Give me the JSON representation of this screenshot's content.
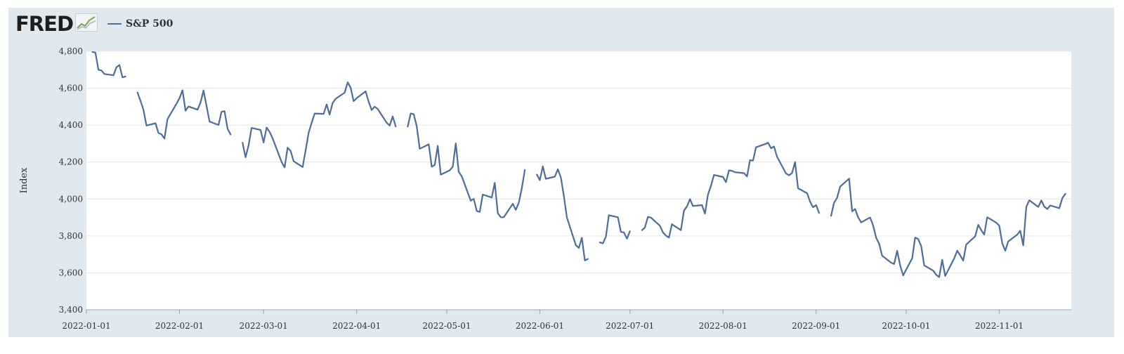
{
  "header": {
    "logo_text": "FRED",
    "legend_label": "S&P 500"
  },
  "colors": {
    "series": "#4d6d9a",
    "frame_background": "#e1e9f0",
    "plot_background": "#ffffff",
    "grid": "#e6e6e6"
  },
  "icons": {
    "logo_graph": "chart-line-icon"
  },
  "chart_data": {
    "type": "line",
    "title": "",
    "xlabel": "",
    "ylabel": "Index",
    "ylim": [
      3400,
      4800
    ],
    "xlim": [
      "2022-01-01",
      "2022-11-25"
    ],
    "y_ticks": [
      "3,400",
      "3,600",
      "3,800",
      "4,000",
      "4,200",
      "4,400",
      "4,600",
      "4,800"
    ],
    "x_ticks": [
      "2022-01-01",
      "2022-02-01",
      "2022-03-01",
      "2022-04-01",
      "2022-05-01",
      "2022-06-01",
      "2022-07-01",
      "2022-08-01",
      "2022-09-01",
      "2022-10-01",
      "2022-11-01"
    ],
    "grid": true,
    "legend_position": "top-left",
    "series": [
      {
        "name": "S&P 500",
        "x": [
          "2022-01-03",
          "2022-01-04",
          "2022-01-05",
          "2022-01-06",
          "2022-01-07",
          "2022-01-10",
          "2022-01-11",
          "2022-01-12",
          "2022-01-13",
          "2022-01-14",
          null,
          "2022-01-18",
          "2022-01-19",
          "2022-01-20",
          "2022-01-21",
          "2022-01-24",
          "2022-01-25",
          "2022-01-26",
          "2022-01-27",
          "2022-01-28",
          "2022-01-31",
          "2022-02-01",
          "2022-02-02",
          "2022-02-03",
          "2022-02-04",
          "2022-02-07",
          "2022-02-08",
          "2022-02-09",
          "2022-02-10",
          "2022-02-11",
          "2022-02-14",
          "2022-02-15",
          "2022-02-16",
          "2022-02-17",
          "2022-02-18",
          null,
          "2022-02-22",
          "2022-02-23",
          "2022-02-24",
          "2022-02-25",
          "2022-02-28",
          "2022-03-01",
          "2022-03-02",
          "2022-03-03",
          "2022-03-04",
          "2022-03-07",
          "2022-03-08",
          "2022-03-09",
          "2022-03-10",
          "2022-03-11",
          "2022-03-14",
          "2022-03-15",
          "2022-03-16",
          "2022-03-17",
          "2022-03-18",
          "2022-03-21",
          "2022-03-22",
          "2022-03-23",
          "2022-03-24",
          "2022-03-25",
          "2022-03-28",
          "2022-03-29",
          "2022-03-30",
          "2022-03-31",
          "2022-04-01",
          "2022-04-04",
          "2022-04-05",
          "2022-04-06",
          "2022-04-07",
          "2022-04-08",
          "2022-04-11",
          "2022-04-12",
          "2022-04-13",
          "2022-04-14",
          null,
          "2022-04-18",
          "2022-04-19",
          "2022-04-20",
          "2022-04-21",
          "2022-04-22",
          "2022-04-25",
          "2022-04-26",
          "2022-04-27",
          "2022-04-28",
          "2022-04-29",
          "2022-05-02",
          "2022-05-03",
          "2022-05-04",
          "2022-05-05",
          "2022-05-06",
          "2022-05-09",
          "2022-05-10",
          "2022-05-11",
          "2022-05-12",
          "2022-05-13",
          "2022-05-16",
          "2022-05-17",
          "2022-05-18",
          "2022-05-19",
          "2022-05-20",
          "2022-05-23",
          "2022-05-24",
          "2022-05-25",
          "2022-05-26",
          "2022-05-27",
          null,
          "2022-05-31",
          "2022-06-01",
          "2022-06-02",
          "2022-06-03",
          "2022-06-06",
          "2022-06-07",
          "2022-06-08",
          "2022-06-09",
          "2022-06-10",
          "2022-06-13",
          "2022-06-14",
          "2022-06-15",
          "2022-06-16",
          "2022-06-17",
          null,
          "2022-06-21",
          "2022-06-22",
          "2022-06-23",
          "2022-06-24",
          "2022-06-27",
          "2022-06-28",
          "2022-06-29",
          "2022-06-30",
          "2022-07-01",
          null,
          "2022-07-05",
          "2022-07-06",
          "2022-07-07",
          "2022-07-08",
          "2022-07-11",
          "2022-07-12",
          "2022-07-13",
          "2022-07-14",
          "2022-07-15",
          "2022-07-18",
          "2022-07-19",
          "2022-07-20",
          "2022-07-21",
          "2022-07-22",
          "2022-07-25",
          "2022-07-26",
          "2022-07-27",
          "2022-07-28",
          "2022-07-29",
          "2022-08-01",
          "2022-08-02",
          "2022-08-03",
          "2022-08-04",
          "2022-08-05",
          "2022-08-08",
          "2022-08-09",
          "2022-08-10",
          "2022-08-11",
          "2022-08-12",
          "2022-08-15",
          "2022-08-16",
          "2022-08-17",
          "2022-08-18",
          "2022-08-19",
          "2022-08-22",
          "2022-08-23",
          "2022-08-24",
          "2022-08-25",
          "2022-08-26",
          "2022-08-29",
          "2022-08-30",
          "2022-08-31",
          "2022-09-01",
          "2022-09-02",
          null,
          "2022-09-06",
          "2022-09-07",
          "2022-09-08",
          "2022-09-09",
          "2022-09-12",
          "2022-09-13",
          "2022-09-14",
          "2022-09-15",
          "2022-09-16",
          "2022-09-19",
          "2022-09-20",
          "2022-09-21",
          "2022-09-22",
          "2022-09-23",
          "2022-09-26",
          "2022-09-27",
          "2022-09-28",
          "2022-09-29",
          "2022-09-30",
          "2022-10-03",
          "2022-10-04",
          "2022-10-05",
          "2022-10-06",
          "2022-10-07",
          "2022-10-10",
          "2022-10-11",
          "2022-10-12",
          "2022-10-13",
          "2022-10-14",
          "2022-10-17",
          "2022-10-18",
          "2022-10-19",
          "2022-10-20",
          "2022-10-21",
          "2022-10-24",
          "2022-10-25",
          "2022-10-26",
          "2022-10-27",
          "2022-10-28",
          "2022-10-31",
          "2022-11-01",
          "2022-11-02",
          "2022-11-03",
          "2022-11-04",
          "2022-11-07",
          "2022-11-08",
          "2022-11-09",
          "2022-11-10",
          "2022-11-11",
          "2022-11-14",
          "2022-11-15",
          "2022-11-16",
          "2022-11-17",
          "2022-11-18",
          "2022-11-21",
          "2022-11-22",
          "2022-11-23"
        ],
        "y": [
          4796,
          4793,
          4700,
          4696,
          4677,
          4670,
          4713,
          4726,
          4659,
          4663,
          null,
          4577,
          4533,
          4483,
          4398,
          4410,
          4357,
          4350,
          4327,
          4432,
          4516,
          4546,
          4589,
          4478,
          4501,
          4484,
          4522,
          4588,
          4504,
          4419,
          4401,
          4472,
          4476,
          4381,
          4349,
          null,
          4305,
          4226,
          4289,
          4385,
          4374,
          4306,
          4387,
          4364,
          4329,
          4201,
          4171,
          4278,
          4260,
          4205,
          4173,
          4262,
          4358,
          4412,
          4463,
          4461,
          4512,
          4457,
          4520,
          4543,
          4576,
          4632,
          4603,
          4530,
          4546,
          4583,
          4526,
          4482,
          4500,
          4488,
          4413,
          4397,
          4447,
          4393,
          null,
          4392,
          4463,
          4460,
          4394,
          4272,
          4296,
          4175,
          4184,
          4288,
          4132,
          4155,
          4175,
          4301,
          4147,
          4123,
          3991,
          4001,
          3935,
          3930,
          4024,
          4008,
          4088,
          3923,
          3901,
          3901,
          3974,
          3941,
          3979,
          4058,
          4158,
          null,
          4132,
          4102,
          4177,
          4109,
          4121,
          4161,
          4116,
          4018,
          3901,
          3750,
          3735,
          3790,
          3667,
          3675,
          null,
          3765,
          3760,
          3796,
          3912,
          3901,
          3822,
          3819,
          3785,
          3825,
          null,
          3831,
          3845,
          3903,
          3899,
          3855,
          3819,
          3801,
          3791,
          3863,
          3831,
          3937,
          3960,
          3999,
          3962,
          3967,
          3921,
          4024,
          4072,
          4130,
          4119,
          4091,
          4155,
          4152,
          4145,
          4140,
          4122,
          4210,
          4208,
          4280,
          4297,
          4305,
          4275,
          4284,
          4229,
          4138,
          4128,
          4141,
          4200,
          4058,
          4031,
          3986,
          3955,
          3967,
          3924,
          null,
          3909,
          3980,
          4006,
          4067,
          4110,
          3933,
          3946,
          3901,
          3873,
          3900,
          3856,
          3790,
          3758,
          3693,
          3655,
          3648,
          3719,
          3640,
          3586,
          3679,
          3791,
          3783,
          3745,
          3640,
          3612,
          3589,
          3577,
          3670,
          3583,
          3678,
          3720,
          3695,
          3666,
          3753,
          3798,
          3860,
          3831,
          3807,
          3901,
          3872,
          3856,
          3760,
          3720,
          3770,
          3807,
          3828,
          3749,
          3957,
          3993,
          3957,
          3992,
          3959,
          3946,
          3965,
          3950,
          4004,
          4028
        ]
      }
    ]
  }
}
